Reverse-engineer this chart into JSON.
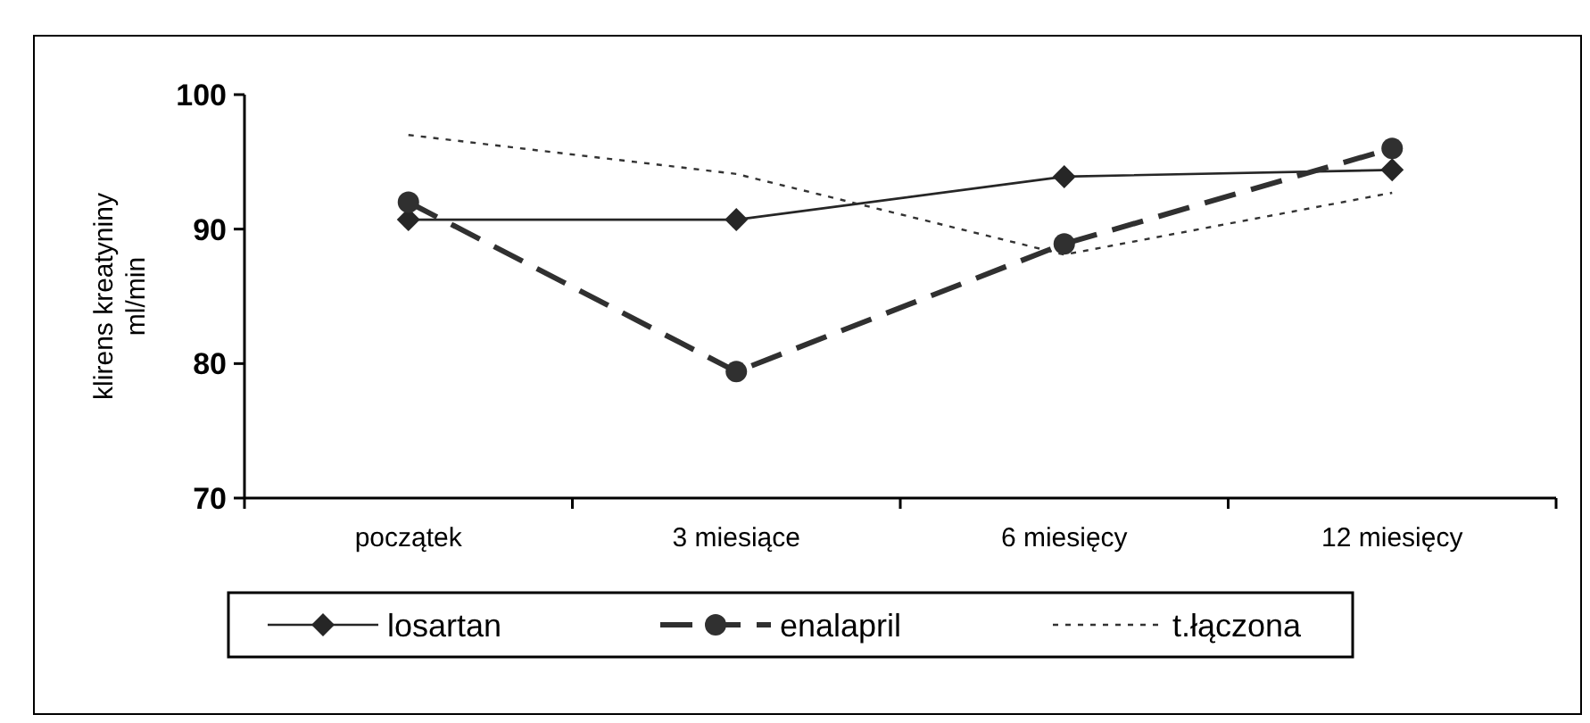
{
  "chart_data": {
    "type": "line",
    "ylabel": "klirens kreatyniny\nml/min",
    "categories": [
      "początek",
      "3 miesiące",
      "6 miesięcy",
      "12 miesięcy"
    ],
    "ylim": [
      70,
      100
    ],
    "yticks": [
      70,
      80,
      90,
      100
    ],
    "grid": false,
    "legend": "bottom",
    "series": [
      {
        "name": "losartan",
        "color": "#262626",
        "values": [
          90.7,
          90.7,
          93.9,
          94.4
        ],
        "marker": "diamond",
        "line_style": "solid"
      },
      {
        "name": "enalapril",
        "color": "#303030",
        "values": [
          92,
          79.4,
          88.9,
          96
        ],
        "marker": "circle",
        "line_style": "dashed"
      },
      {
        "name": "t.łączona",
        "color": "#333333",
        "values": [
          97,
          94.1,
          88.1,
          92.7
        ],
        "marker": "none",
        "line_style": "dotted"
      }
    ]
  }
}
